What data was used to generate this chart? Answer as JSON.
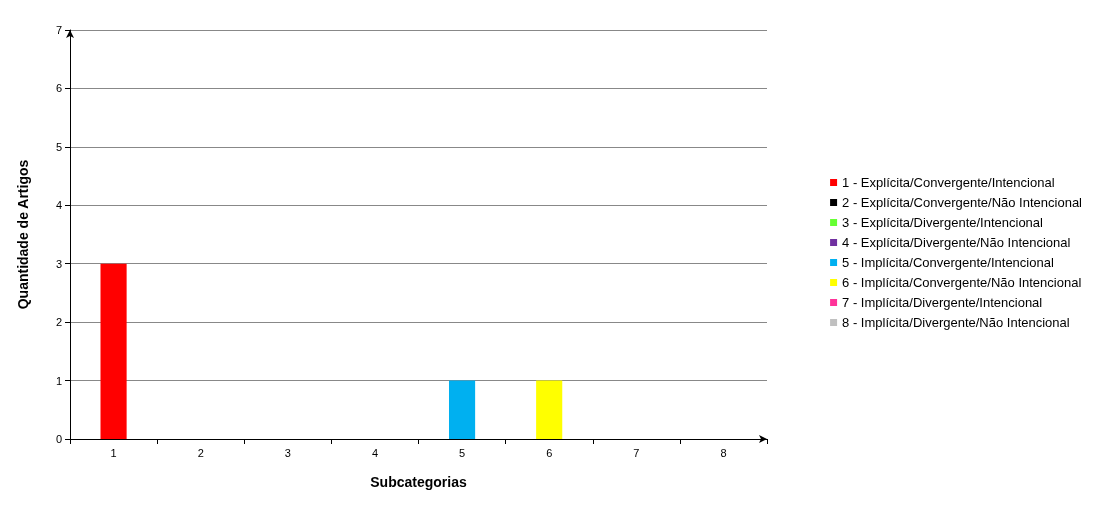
{
  "chart_data": {
    "type": "bar",
    "xlabel": "Subcategorias",
    "ylabel": "Quantidade de Artigos",
    "categories": [
      "1",
      "2",
      "3",
      "4",
      "5",
      "6",
      "7",
      "8"
    ],
    "stacked": true,
    "series": [
      {
        "name": "1 - Explícita/Convergente/Intencional",
        "color": "#ff0000",
        "values": [
          3,
          null,
          null,
          null,
          null,
          null,
          null,
          null
        ]
      },
      {
        "name": "2 - Explícita/Convergente/Não Intencional",
        "color": "#000000",
        "values": [
          null,
          0,
          null,
          null,
          null,
          null,
          null,
          null
        ]
      },
      {
        "name": "3 - Explícita/Divergente/Intencional",
        "color": "#66ff33",
        "values": [
          null,
          null,
          0,
          null,
          null,
          null,
          null,
          null
        ]
      },
      {
        "name": "4 - Explícita/Divergente/Não Intencional",
        "color": "#7030a0",
        "values": [
          null,
          null,
          null,
          0,
          null,
          null,
          null,
          null
        ]
      },
      {
        "name": "5 - Implícita/Convergente/Intencional",
        "color": "#00b0f0",
        "values": [
          null,
          null,
          null,
          null,
          1,
          null,
          null,
          null
        ]
      },
      {
        "name": "6 - Implícita/Convergente/Não Intencional",
        "color": "#ffff00",
        "values": [
          null,
          null,
          null,
          null,
          null,
          1,
          null,
          null
        ]
      },
      {
        "name": "7 - Implícita/Divergente/Intencional",
        "color": "#ff3399",
        "values": [
          null,
          null,
          null,
          null,
          null,
          null,
          0,
          null
        ]
      },
      {
        "name": "8 - Implícita/Divergente/Não Intencional",
        "color": "#c0c0c0",
        "values": [
          null,
          null,
          null,
          null,
          null,
          null,
          null,
          0
        ]
      }
    ],
    "ylim": [
      0,
      7
    ],
    "yticks": [
      0,
      1,
      2,
      3,
      4,
      5,
      6,
      7
    ],
    "grid": "y",
    "legend": "right"
  }
}
